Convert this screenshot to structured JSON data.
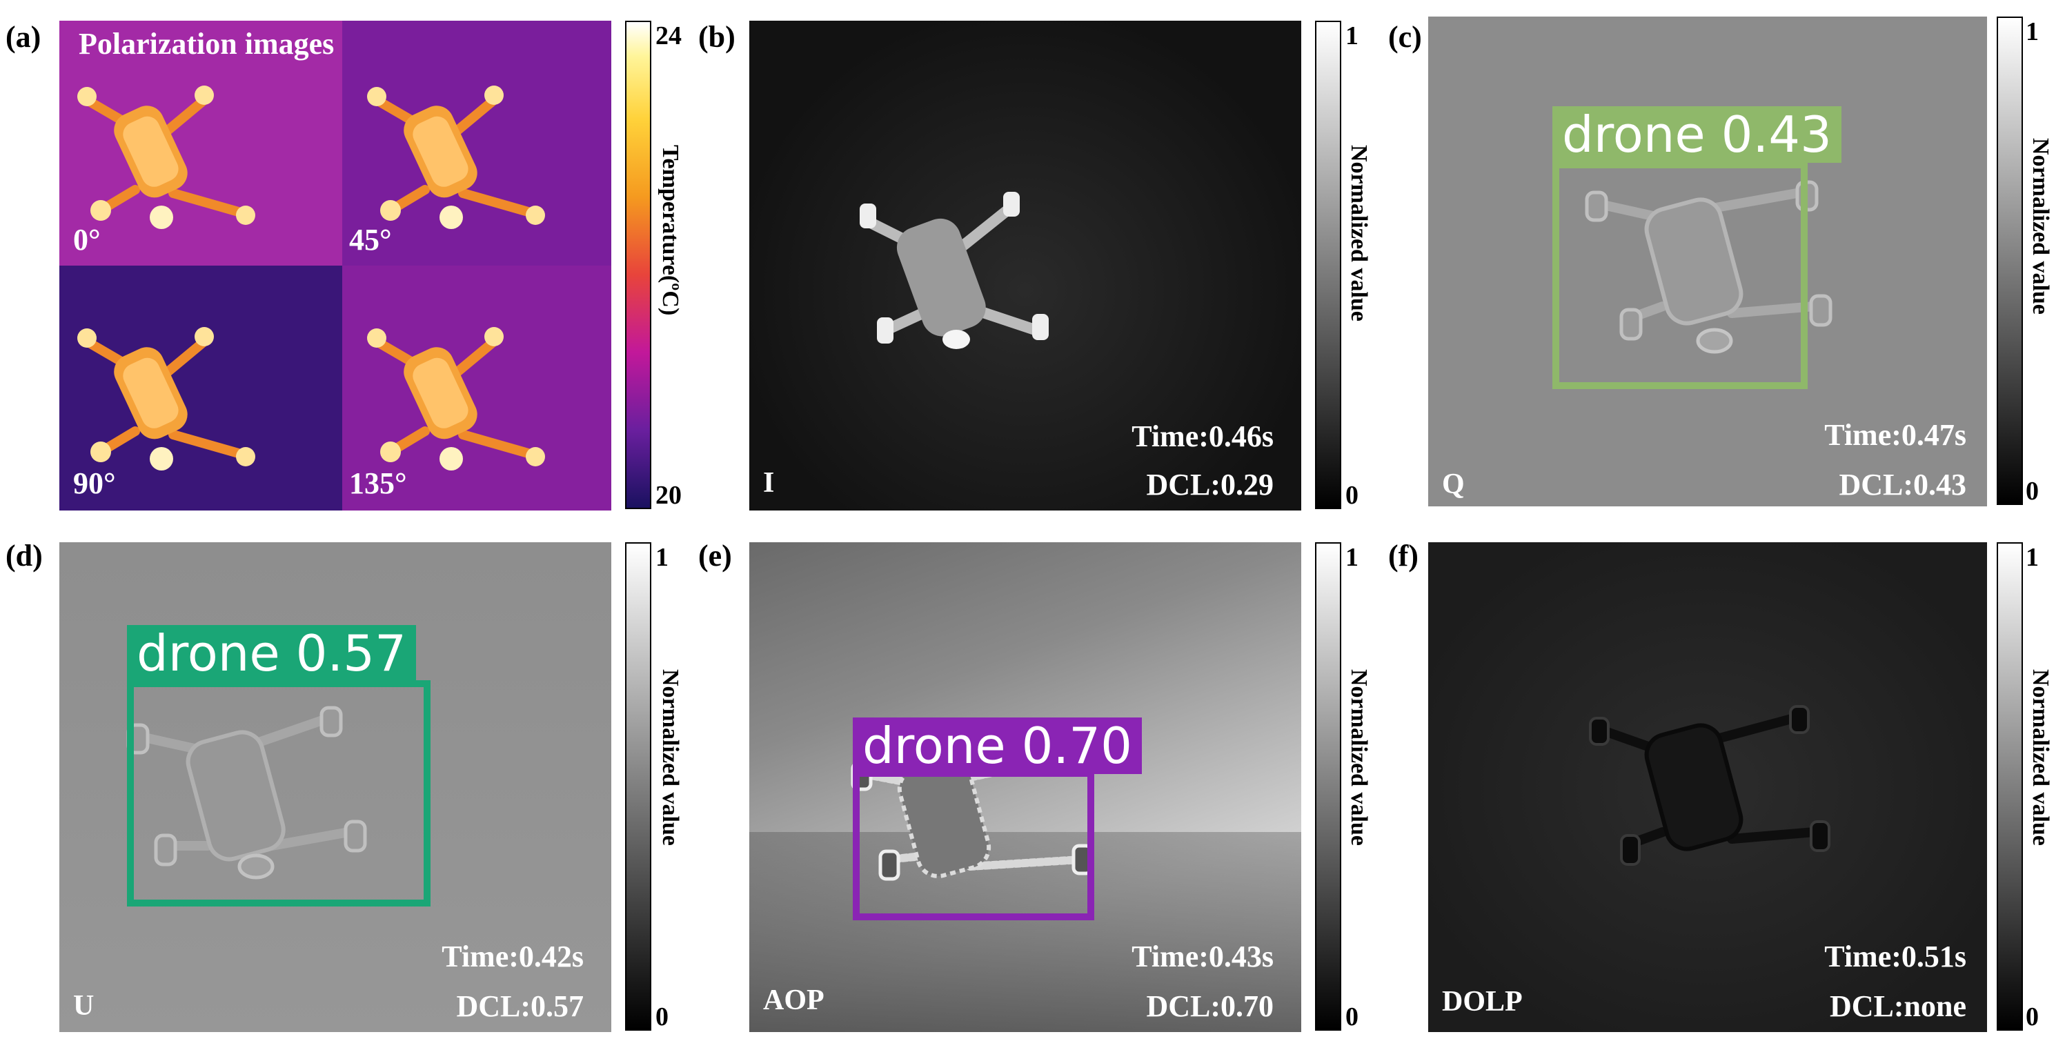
{
  "panels": {
    "a": {
      "label": "(a)",
      "title": "Polarization images",
      "angles": [
        "0°",
        "45°",
        "90°",
        "135°"
      ],
      "colorbar": {
        "max": "24",
        "min": "20",
        "label": "Temperature(ºC)"
      }
    },
    "b": {
      "label": "(b)",
      "channel": "I",
      "time": "Time:0.46s",
      "dcl": "DCL:0.29",
      "colorbar": {
        "max": "1",
        "min": "0",
        "label": "Normalized value"
      }
    },
    "c": {
      "label": "(c)",
      "channel": "Q",
      "time": "Time:0.47s",
      "dcl": "DCL:0.43",
      "detection": {
        "text": "drone 0.43",
        "color": "#8fb86a"
      },
      "colorbar": {
        "max": "1",
        "min": "0",
        "label": "Normalized value"
      }
    },
    "d": {
      "label": "(d)",
      "channel": "U",
      "time": "Time:0.42s",
      "dcl": "DCL:0.57",
      "detection": {
        "text": "drone 0.57",
        "color": "#1aa676"
      },
      "colorbar": {
        "max": "1",
        "min": "0",
        "label": "Normalized value"
      }
    },
    "e": {
      "label": "(e)",
      "channel": "AOP",
      "time": "Time:0.43s",
      "dcl": "DCL:0.70",
      "detection": {
        "text": "drone 0.70",
        "color": "#8a24b4"
      },
      "colorbar": {
        "max": "1",
        "min": "0",
        "label": "Normalized value"
      }
    },
    "f": {
      "label": "(f)",
      "channel": "DOLP",
      "time": "Time:0.51s",
      "dcl": "DCL:none",
      "colorbar": {
        "max": "1",
        "min": "0",
        "label": "Normalized value"
      }
    }
  }
}
